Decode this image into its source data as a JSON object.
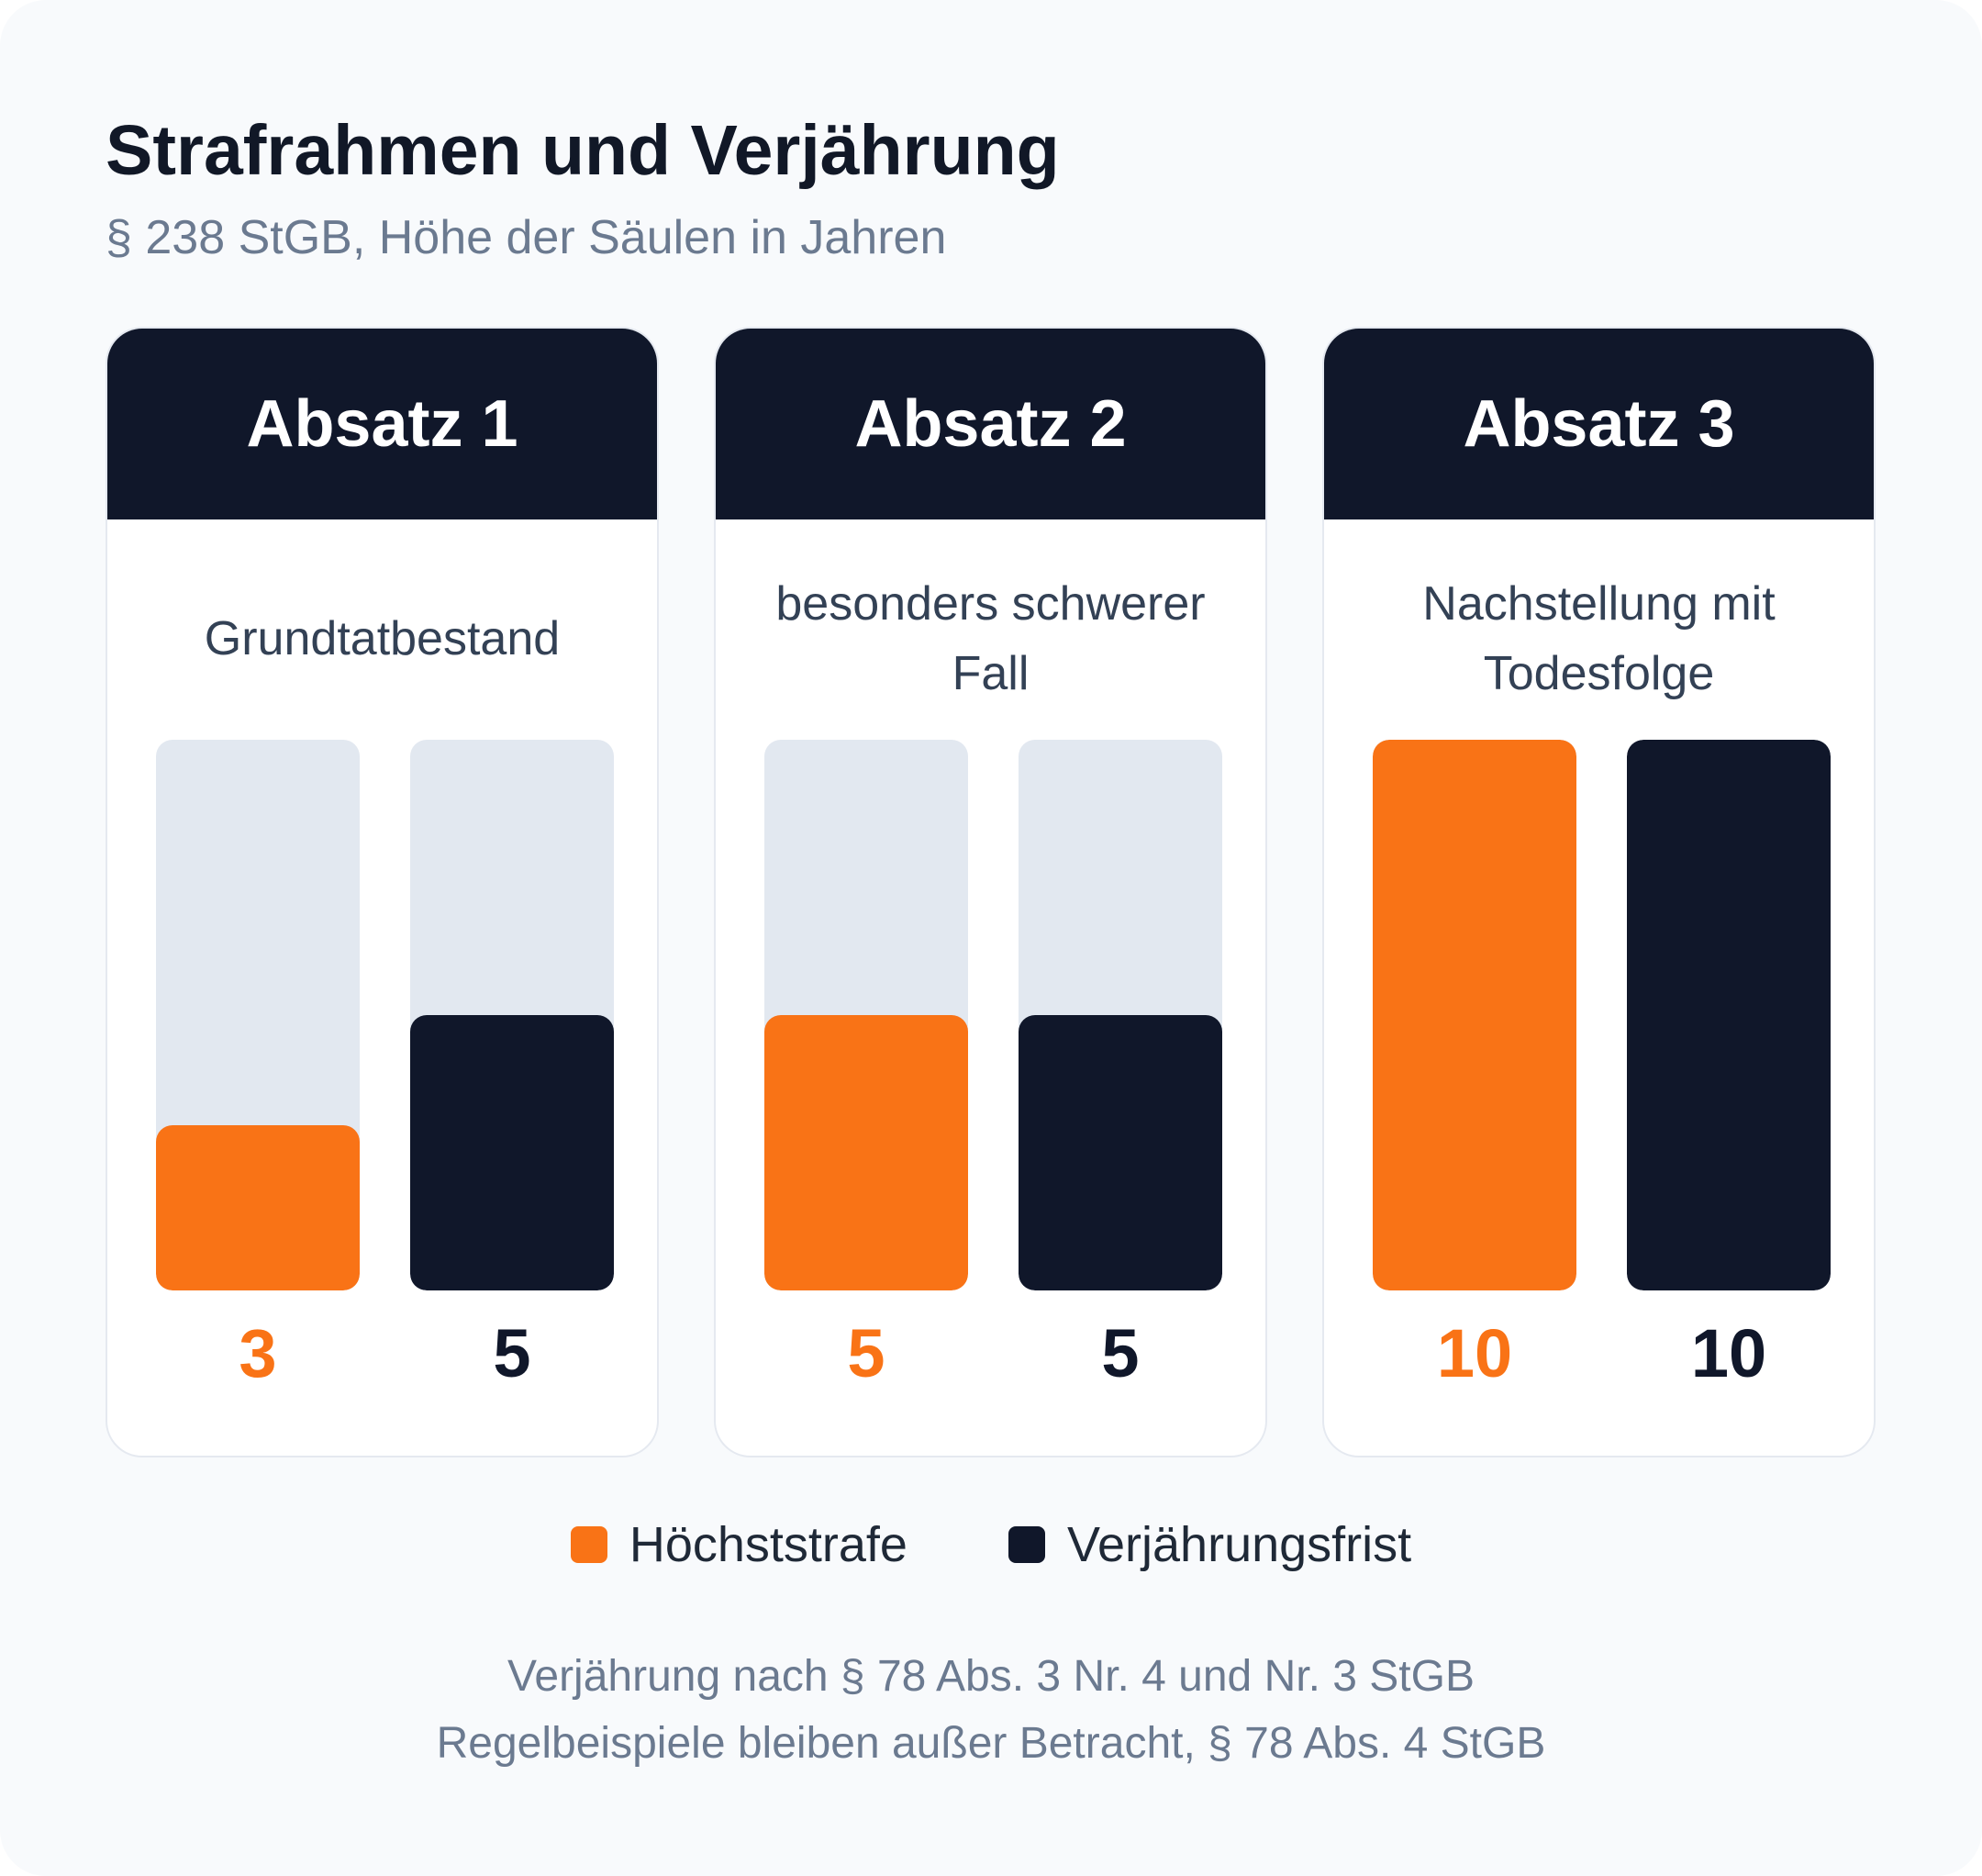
{
  "title": "Strafrahmen und Verjährung",
  "subtitle": "§ 238 StGB, Höhe der Säulen in Jahren",
  "colors": {
    "hoechststrafe": "#f97316",
    "verjaehrungsfrist": "#10172a",
    "track": "#e2e8f0"
  },
  "chart_data": {
    "type": "bar",
    "categories": [
      "Absatz 1",
      "Absatz 2",
      "Absatz 3"
    ],
    "category_descriptions": [
      "Grundtatbestand",
      "besonders schwerer Fall",
      "Nachstellung mit Todesfolge"
    ],
    "series": [
      {
        "name": "Höchststrafe",
        "values": [
          3,
          5,
          10
        ]
      },
      {
        "name": "Verjährungsfrist",
        "values": [
          5,
          5,
          10
        ]
      }
    ],
    "ylim": [
      0,
      10
    ],
    "grid": false,
    "legend_position": "bottom-center"
  },
  "footnotes": [
    "Verjährung nach § 78 Abs. 3 Nr. 4 und Nr. 3 StGB",
    "Regelbeispiele bleiben außer Betracht, § 78 Abs. 4 StGB"
  ]
}
